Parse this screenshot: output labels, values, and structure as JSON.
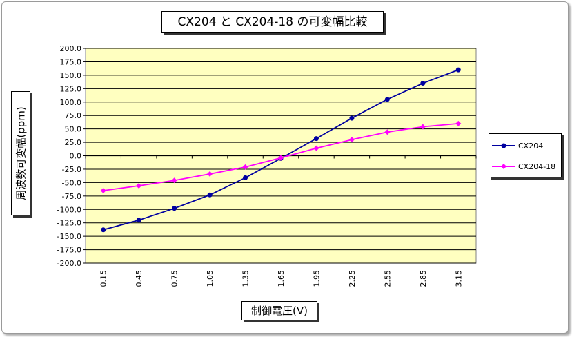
{
  "chart_data": {
    "type": "line",
    "title": "CX204 と CX204-18 の可変幅比較",
    "xlabel": "制御電圧(V)",
    "ylabel": "周波数可変幅(ppm)",
    "categories": [
      "0.15",
      "0.45",
      "0.75",
      "1.05",
      "1.35",
      "1.65",
      "1.95",
      "2.25",
      "2.55",
      "2.85",
      "3.15"
    ],
    "ylim": [
      -200,
      200
    ],
    "ytick_step": 25,
    "y_tick_labels": [
      "-200.0",
      "-175.0",
      "-150.0",
      "-125.0",
      "-100.0",
      "-75.0",
      "-50.0",
      "-25.0",
      "0.0",
      "25.0",
      "50.0",
      "75.0",
      "100.0",
      "125.0",
      "150.0",
      "175.0",
      "200.0"
    ],
    "grid": true,
    "legend_position": "right",
    "plot_background": "#ffffc0",
    "series": [
      {
        "name": "CX204",
        "color": "#0000a0",
        "marker": "circle",
        "values": [
          -138,
          -120,
          -98,
          -73,
          -41,
          -5,
          32,
          70,
          105,
          135,
          160
        ]
      },
      {
        "name": "CX204-18",
        "color": "#ff00ff",
        "marker": "diamond",
        "values": [
          -65,
          -56,
          -46,
          -34,
          -21,
          -4,
          14,
          30,
          44,
          54,
          60
        ]
      }
    ]
  }
}
